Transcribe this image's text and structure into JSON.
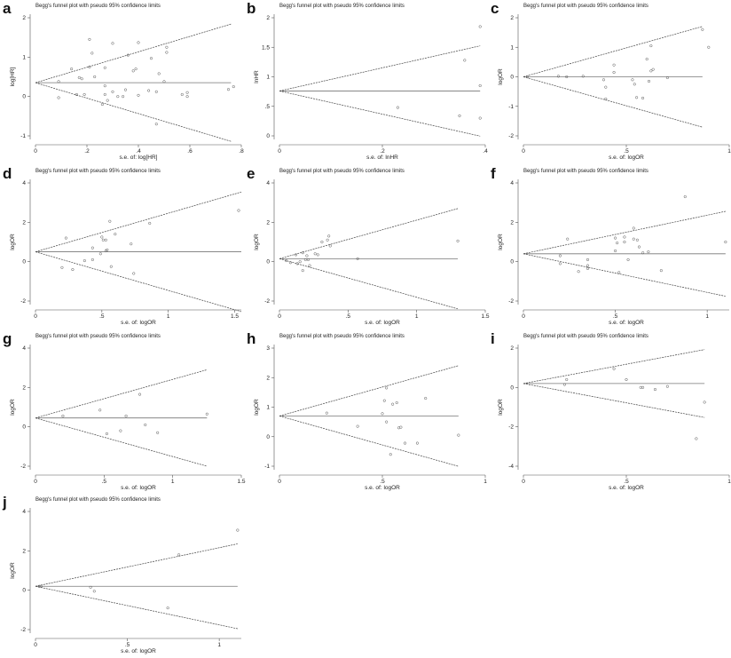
{
  "chart_data": [
    {
      "type": "scatter",
      "letter": "a",
      "title": "Begg's funnel plot with pseudo 95% confidence limits",
      "xlabel": "s.e. of: log[HR]",
      "ylabel": "log[HR]",
      "xticks": [
        "0",
        ".2",
        ".4",
        ".6",
        ".8"
      ],
      "xtick_values": [
        0,
        0.2,
        0.4,
        0.6,
        0.8
      ],
      "yticks": [
        "-1",
        "0",
        "1",
        "2"
      ],
      "ytick_values": [
        -1,
        0,
        1,
        2
      ],
      "xlim": [
        0,
        0.8
      ],
      "ylim": [
        -1,
        2
      ],
      "pooled": 0.35,
      "max_se": 0.76,
      "points": [
        [
          0.09,
          -0.03
        ],
        [
          0.09,
          0.38
        ],
        [
          0.14,
          0.7
        ],
        [
          0.16,
          0.05
        ],
        [
          0.17,
          0.48
        ],
        [
          0.18,
          0.45
        ],
        [
          0.19,
          0.05
        ],
        [
          0.21,
          1.45
        ],
        [
          0.21,
          0.75
        ],
        [
          0.22,
          1.1
        ],
        [
          0.23,
          0.5
        ],
        [
          0.27,
          0.27
        ],
        [
          0.27,
          0.05
        ],
        [
          0.27,
          0.73
        ],
        [
          0.28,
          -0.1
        ],
        [
          0.26,
          -0.2
        ],
        [
          0.3,
          1.35
        ],
        [
          0.3,
          0.12
        ],
        [
          0.32,
          0
        ],
        [
          0.34,
          0
        ],
        [
          0.35,
          0.17
        ],
        [
          0.36,
          1.05
        ],
        [
          0.38,
          0.65
        ],
        [
          0.39,
          0.7
        ],
        [
          0.4,
          1.37
        ],
        [
          0.4,
          0.03
        ],
        [
          0.44,
          0.15
        ],
        [
          0.45,
          0.97
        ],
        [
          0.47,
          0.12
        ],
        [
          0.47,
          -0.7
        ],
        [
          0.48,
          0.58
        ],
        [
          0.5,
          0.38
        ],
        [
          0.51,
          1.25
        ],
        [
          0.51,
          1.12
        ],
        [
          0.57,
          0.05
        ],
        [
          0.59,
          0
        ],
        [
          0.59,
          0.1
        ],
        [
          0.75,
          0.18
        ],
        [
          0.77,
          0.25
        ]
      ]
    },
    {
      "type": "scatter",
      "letter": "b",
      "title": "Begg's funnel plot with pseudo 95% confidence limits",
      "xlabel": "s.e. of: lnHR",
      "ylabel": "lnHR",
      "xticks": [
        "0",
        ".2",
        ".4"
      ],
      "xtick_values": [
        0,
        0.2,
        0.4
      ],
      "yticks": [
        "0",
        ".5",
        "1",
        "1.5",
        "2"
      ],
      "ytick_values": [
        0,
        0.5,
        1,
        1.5,
        2
      ],
      "xlim": [
        0,
        0.4
      ],
      "ylim": [
        0,
        2
      ],
      "pooled": 0.76,
      "max_se": 0.39,
      "points": [
        [
          0.23,
          0.48
        ],
        [
          0.35,
          0.34
        ],
        [
          0.36,
          1.28
        ],
        [
          0.39,
          1.85
        ],
        [
          0.39,
          0.3
        ],
        [
          0.39,
          0.85
        ]
      ]
    },
    {
      "type": "scatter",
      "letter": "c",
      "title": "Begg's funnel plot with pseudo 95% confidence limits",
      "xlabel": "s.e. of: logOR",
      "ylabel": "logOR",
      "xticks": [
        "0",
        ".5",
        "1"
      ],
      "xtick_values": [
        0,
        0.5,
        1
      ],
      "yticks": [
        "-2",
        "-1",
        "0",
        "1",
        "2"
      ],
      "ytick_values": [
        -2,
        -1,
        0,
        1,
        2
      ],
      "xlim": [
        0,
        1
      ],
      "ylim": [
        -2,
        2
      ],
      "pooled": 0.0,
      "max_se": 0.87,
      "points": [
        [
          0.02,
          0
        ],
        [
          0.17,
          0.02
        ],
        [
          0.21,
          0
        ],
        [
          0.29,
          0.02
        ],
        [
          0.39,
          -0.1
        ],
        [
          0.4,
          -0.35
        ],
        [
          0.4,
          -0.75
        ],
        [
          0.44,
          0.4
        ],
        [
          0.44,
          0.15
        ],
        [
          0.53,
          -0.1
        ],
        [
          0.54,
          -0.25
        ],
        [
          0.55,
          -0.7
        ],
        [
          0.58,
          -0.72
        ],
        [
          0.6,
          0.6
        ],
        [
          0.61,
          -0.15
        ],
        [
          0.62,
          1.05
        ],
        [
          0.62,
          0.2
        ],
        [
          0.63,
          0.25
        ],
        [
          0.7,
          -0.03
        ],
        [
          0.87,
          1.6
        ],
        [
          0.9,
          1.0
        ]
      ]
    },
    {
      "type": "scatter",
      "letter": "d",
      "title": "Begg's funnel plot with pseudo 95% confidence limits",
      "xlabel": "s.e. of: logOR",
      "ylabel": "logOR",
      "xticks": [
        "0",
        ".5",
        "1",
        "1.5"
      ],
      "xtick_values": [
        0,
        0.5,
        1,
        1.5
      ],
      "yticks": [
        "-2",
        "0",
        "2",
        "4"
      ],
      "ytick_values": [
        -2,
        0,
        2,
        4
      ],
      "xlim": [
        0,
        1.55
      ],
      "ylim": [
        -2,
        4
      ],
      "pooled": 0.5,
      "max_se": 1.55,
      "points": [
        [
          0.2,
          -0.3
        ],
        [
          0.23,
          1.2
        ],
        [
          0.28,
          -0.4
        ],
        [
          0.37,
          0.05
        ],
        [
          0.43,
          0.1
        ],
        [
          0.43,
          0.7
        ],
        [
          0.49,
          0.4
        ],
        [
          0.5,
          1.25
        ],
        [
          0.51,
          1.1
        ],
        [
          0.53,
          0.55
        ],
        [
          0.54,
          0.6
        ],
        [
          0.53,
          1.1
        ],
        [
          0.56,
          2.05
        ],
        [
          0.57,
          -0.25
        ],
        [
          0.6,
          1.4
        ],
        [
          0.72,
          0.9
        ],
        [
          0.74,
          -0.6
        ],
        [
          0.86,
          1.95
        ],
        [
          1.53,
          2.6
        ]
      ]
    },
    {
      "type": "scatter",
      "letter": "e",
      "title": "Begg's funnel plot with pseudo 95% confidence limits",
      "xlabel": "s.e. of: logOR",
      "ylabel": "logOR",
      "xticks": [
        "0",
        ".5",
        "1",
        "1.5"
      ],
      "xtick_values": [
        0,
        0.5,
        1,
        1.5
      ],
      "yticks": [
        "-2",
        "0",
        "2",
        "4"
      ],
      "ytick_values": [
        -2,
        0,
        2,
        4
      ],
      "xlim": [
        0,
        1.5
      ],
      "ylim": [
        -2,
        4
      ],
      "pooled": 0.15,
      "max_se": 1.3,
      "points": [
        [
          0.05,
          0.05
        ],
        [
          0.08,
          -0.05
        ],
        [
          0.12,
          0.35
        ],
        [
          0.13,
          -0.1
        ],
        [
          0.15,
          0
        ],
        [
          0.17,
          0.45
        ],
        [
          0.17,
          -0.45
        ],
        [
          0.19,
          0.1
        ],
        [
          0.2,
          0.3
        ],
        [
          0.22,
          -0.2
        ],
        [
          0.21,
          0.1
        ],
        [
          0.26,
          0.4
        ],
        [
          0.28,
          0.35
        ],
        [
          0.31,
          1.0
        ],
        [
          0.35,
          1.1
        ],
        [
          0.36,
          1.3
        ],
        [
          0.37,
          0.8
        ],
        [
          0.57,
          0.15
        ],
        [
          1.3,
          1.05
        ]
      ]
    },
    {
      "type": "scatter",
      "letter": "f",
      "title": "Begg's funnel plot with pseudo 95% confidence limits",
      "xlabel": "s.e. of: logOR",
      "ylabel": "logOR",
      "xticks": [
        "0",
        ".5",
        "1"
      ],
      "xtick_values": [
        0,
        0.5,
        1
      ],
      "yticks": [
        "-2",
        "0",
        "2",
        "4"
      ],
      "ytick_values": [
        -2,
        0,
        2,
        4
      ],
      "xlim": [
        0,
        1.12
      ],
      "ylim": [
        -2,
        4
      ],
      "pooled": 0.4,
      "max_se": 1.1,
      "points": [
        [
          0.2,
          0.3
        ],
        [
          0.2,
          -0.1
        ],
        [
          0.24,
          1.15
        ],
        [
          0.3,
          -0.5
        ],
        [
          0.35,
          0.1
        ],
        [
          0.35,
          -0.2
        ],
        [
          0.35,
          -0.35
        ],
        [
          0.5,
          0.55
        ],
        [
          0.5,
          1.2
        ],
        [
          0.51,
          0.95
        ],
        [
          0.52,
          -0.55
        ],
        [
          0.55,
          1.25
        ],
        [
          0.55,
          1.0
        ],
        [
          0.57,
          0.1
        ],
        [
          0.6,
          1.7
        ],
        [
          0.6,
          1.15
        ],
        [
          0.62,
          1.1
        ],
        [
          0.63,
          0.75
        ],
        [
          0.65,
          0.45
        ],
        [
          0.68,
          0.5
        ],
        [
          0.75,
          -0.45
        ],
        [
          0.88,
          3.3
        ],
        [
          1.1,
          1.0
        ]
      ]
    },
    {
      "type": "scatter",
      "letter": "g",
      "title": "Begg's funnel plot with pseudo 95% confidence limits",
      "xlabel": "s.e. of: logOR",
      "ylabel": "logOR",
      "xticks": [
        "0",
        ".5",
        "1",
        "1.5"
      ],
      "xtick_values": [
        0,
        0.5,
        1,
        1.5
      ],
      "yticks": [
        "-2",
        "0",
        "2",
        "4"
      ],
      "ytick_values": [
        -2,
        0,
        2,
        4
      ],
      "xlim": [
        0,
        1.5
      ],
      "ylim": [
        -2,
        4
      ],
      "pooled": 0.45,
      "max_se": 1.25,
      "points": [
        [
          0.2,
          0.55
        ],
        [
          0.47,
          0.85
        ],
        [
          0.52,
          -0.35
        ],
        [
          0.62,
          -0.2
        ],
        [
          0.66,
          0.55
        ],
        [
          0.76,
          1.65
        ],
        [
          0.8,
          0.1
        ],
        [
          0.89,
          -0.3
        ],
        [
          1.25,
          0.65
        ]
      ]
    },
    {
      "type": "scatter",
      "letter": "h",
      "title": "Begg's funnel plot with pseudo 95% confidence limits",
      "xlabel": "s.e. of: logOR",
      "ylabel": "logOR",
      "xticks": [
        "0",
        ".5",
        "1"
      ],
      "xtick_values": [
        0,
        0.5,
        1
      ],
      "yticks": [
        "-1",
        "0",
        "1",
        "2",
        "3"
      ],
      "ytick_values": [
        -1,
        0,
        1,
        2,
        3
      ],
      "xlim": [
        0,
        1
      ],
      "ylim": [
        -1,
        3
      ],
      "pooled": 0.7,
      "max_se": 0.87,
      "points": [
        [
          0.23,
          0.8
        ],
        [
          0.38,
          0.35
        ],
        [
          0.5,
          0.78
        ],
        [
          0.51,
          1.22
        ],
        [
          0.52,
          1.65
        ],
        [
          0.52,
          0.5
        ],
        [
          0.54,
          -0.6
        ],
        [
          0.55,
          1.1
        ],
        [
          0.57,
          1.15
        ],
        [
          0.58,
          0.3
        ],
        [
          0.59,
          0.32
        ],
        [
          0.61,
          -0.22
        ],
        [
          0.67,
          -0.22
        ],
        [
          0.71,
          1.3
        ],
        [
          0.87,
          0.05
        ]
      ]
    },
    {
      "type": "scatter",
      "letter": "i",
      "title": "Begg's funnel plot with pseudo 95% confidence limits",
      "xlabel": "s.e. of: logOR",
      "ylabel": "logOR",
      "xticks": [
        "0",
        ".5",
        "1"
      ],
      "xtick_values": [
        0,
        0.5,
        1
      ],
      "yticks": [
        "-4",
        "-2",
        "0",
        "2"
      ],
      "ytick_values": [
        -4,
        -2,
        0,
        2
      ],
      "xlim": [
        0,
        1
      ],
      "ylim": [
        -4,
        2
      ],
      "pooled": 0.2,
      "max_se": 0.88,
      "points": [
        [
          0.2,
          0.15
        ],
        [
          0.21,
          0.4
        ],
        [
          0.44,
          0.95
        ],
        [
          0.5,
          0.4
        ],
        [
          0.57,
          0
        ],
        [
          0.58,
          0
        ],
        [
          0.64,
          -0.1
        ],
        [
          0.7,
          0.05
        ],
        [
          0.84,
          -2.6
        ],
        [
          0.88,
          -0.75
        ]
      ]
    },
    {
      "type": "scatter",
      "letter": "j",
      "title": "Begg's funnel plot with pseudo 95% confidence limits",
      "xlabel": "s.e. of: logOR",
      "ylabel": "logOR",
      "xticks": [
        "0",
        ".5",
        "1"
      ],
      "xtick_values": [
        0,
        0.5,
        1
      ],
      "yticks": [
        "-2",
        "0",
        "2",
        "4"
      ],
      "ytick_values": [
        -2,
        0,
        2,
        4
      ],
      "xlim": [
        0,
        1.12
      ],
      "ylim": [
        -2,
        4
      ],
      "pooled": 0.2,
      "max_se": 1.1,
      "points": [
        [
          0.02,
          0.2
        ],
        [
          0.03,
          0.2
        ],
        [
          0.3,
          0.15
        ],
        [
          0.32,
          -0.05
        ],
        [
          0.72,
          -0.9
        ],
        [
          0.78,
          1.8
        ],
        [
          1.1,
          3.05
        ]
      ]
    }
  ]
}
